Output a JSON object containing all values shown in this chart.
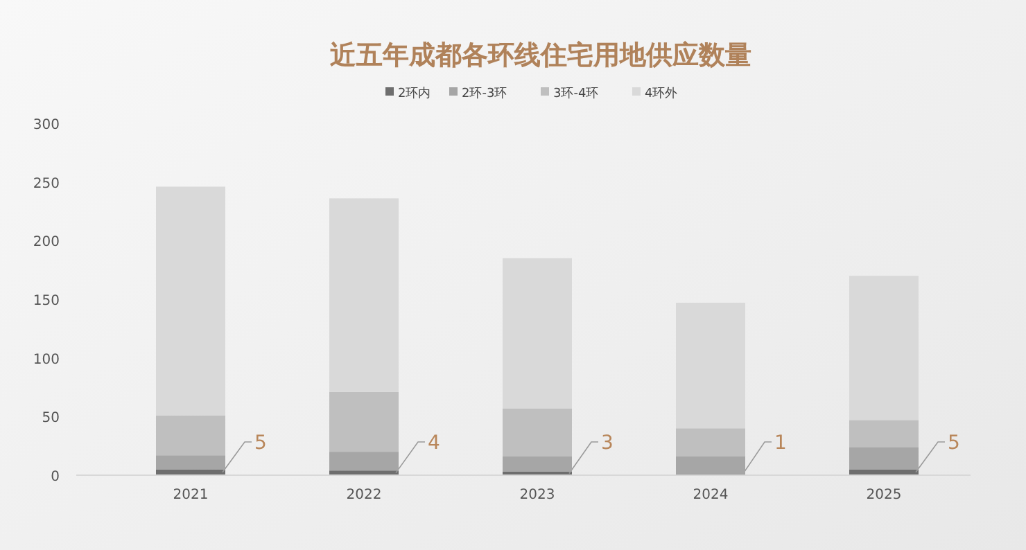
{
  "chart_data": {
    "type": "bar",
    "title": "近五年成都各环线住宅用地供应数量",
    "categories": [
      "2021",
      "2022",
      "2023",
      "2024",
      "2025"
    ],
    "stacked": true,
    "ylim": [
      0,
      300
    ],
    "yticks": [
      0,
      50,
      100,
      150,
      200,
      250,
      300
    ],
    "grid": false,
    "legend": "top",
    "series": [
      {
        "name": "2环内",
        "color": "#6e6e6e",
        "values": [
          5,
          4,
          3,
          1,
          5
        ],
        "value_labels": [
          "5",
          "4",
          "3",
          "1",
          "5"
        ]
      },
      {
        "name": "2环-3环",
        "color": "#a6a6a6",
        "values": [
          12,
          16,
          13,
          15,
          19
        ]
      },
      {
        "name": "3环-4环",
        "color": "#bfbfbf",
        "values": [
          34,
          51,
          41,
          24,
          23
        ]
      },
      {
        "name": "4环外",
        "color": "#d9d9d9",
        "values": [
          195,
          165,
          128,
          107,
          123
        ]
      }
    ]
  }
}
